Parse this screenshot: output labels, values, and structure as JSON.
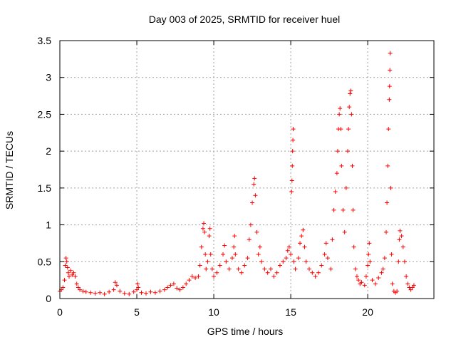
{
  "chart_data": {
    "type": "scatter",
    "title": "Day 003 of 2025, SRMTID for receiver huel",
    "xlabel": "GPS time / hours",
    "ylabel": "SRMTID / TECUs",
    "xlim": [
      0,
      24.3
    ],
    "ylim": [
      0,
      3.5
    ],
    "x_ticks": [
      0,
      5,
      10,
      15,
      20
    ],
    "x_tick_labels": [
      "0",
      "5",
      "10",
      "15",
      "20"
    ],
    "y_ticks": [
      0,
      0.5,
      1,
      1.5,
      2,
      2.5,
      3,
      3.5
    ],
    "y_tick_labels": [
      "0",
      "0.5",
      "1",
      "1.5",
      "2",
      "2.5",
      "3",
      "3.5"
    ],
    "grid": true,
    "marker": "+",
    "series": [
      {
        "name": "SRMTID",
        "color": "#ff0000",
        "points": [
          [
            0.0,
            0.1
          ],
          [
            0.1,
            0.12
          ],
          [
            0.2,
            0.15
          ],
          [
            0.3,
            0.25
          ],
          [
            0.35,
            0.45
          ],
          [
            0.4,
            0.55
          ],
          [
            0.45,
            0.5
          ],
          [
            0.5,
            0.42
          ],
          [
            0.55,
            0.35
          ],
          [
            0.6,
            0.3
          ],
          [
            0.7,
            0.38
          ],
          [
            0.8,
            0.32
          ],
          [
            0.9,
            0.35
          ],
          [
            1.0,
            0.3
          ],
          [
            1.1,
            0.2
          ],
          [
            1.2,
            0.15
          ],
          [
            1.3,
            0.12
          ],
          [
            1.5,
            0.1
          ],
          [
            1.7,
            0.09
          ],
          [
            2.0,
            0.08
          ],
          [
            2.3,
            0.07
          ],
          [
            2.6,
            0.08
          ],
          [
            2.9,
            0.06
          ],
          [
            3.2,
            0.09
          ],
          [
            3.5,
            0.12
          ],
          [
            3.6,
            0.22
          ],
          [
            3.7,
            0.18
          ],
          [
            3.9,
            0.1
          ],
          [
            4.2,
            0.07
          ],
          [
            4.5,
            0.06
          ],
          [
            4.8,
            0.09
          ],
          [
            5.0,
            0.12
          ],
          [
            5.05,
            0.2
          ],
          [
            5.1,
            0.15
          ],
          [
            5.3,
            0.08
          ],
          [
            5.6,
            0.07
          ],
          [
            5.9,
            0.09
          ],
          [
            6.2,
            0.08
          ],
          [
            6.5,
            0.1
          ],
          [
            6.8,
            0.12
          ],
          [
            7.0,
            0.15
          ],
          [
            7.2,
            0.18
          ],
          [
            7.4,
            0.2
          ],
          [
            7.6,
            0.14
          ],
          [
            7.8,
            0.12
          ],
          [
            8.0,
            0.15
          ],
          [
            8.2,
            0.2
          ],
          [
            8.4,
            0.25
          ],
          [
            8.6,
            0.3
          ],
          [
            8.8,
            0.28
          ],
          [
            9.0,
            0.3
          ],
          [
            9.1,
            0.45
          ],
          [
            9.2,
            0.7
          ],
          [
            9.3,
            0.95
          ],
          [
            9.35,
            1.02
          ],
          [
            9.4,
            0.9
          ],
          [
            9.45,
            0.6
          ],
          [
            9.5,
            0.4
          ],
          [
            9.6,
            0.5
          ],
          [
            9.7,
            0.85
          ],
          [
            9.75,
            0.95
          ],
          [
            9.8,
            0.6
          ],
          [
            9.9,
            0.4
          ],
          [
            10.0,
            0.3
          ],
          [
            10.2,
            0.35
          ],
          [
            10.4,
            0.45
          ],
          [
            10.6,
            0.6
          ],
          [
            10.7,
            0.72
          ],
          [
            10.8,
            0.5
          ],
          [
            11.0,
            0.4
          ],
          [
            11.2,
            0.55
          ],
          [
            11.3,
            0.7
          ],
          [
            11.35,
            0.85
          ],
          [
            11.4,
            0.6
          ],
          [
            11.6,
            0.4
          ],
          [
            11.8,
            0.35
          ],
          [
            12.0,
            0.45
          ],
          [
            12.2,
            0.55
          ],
          [
            12.3,
            0.8
          ],
          [
            12.4,
            1.0
          ],
          [
            12.5,
            1.3
          ],
          [
            12.6,
            1.55
          ],
          [
            12.65,
            1.63
          ],
          [
            12.7,
            1.4
          ],
          [
            12.8,
            0.9
          ],
          [
            12.9,
            0.6
          ],
          [
            13.0,
            0.7
          ],
          [
            13.1,
            0.5
          ],
          [
            13.3,
            0.4
          ],
          [
            13.5,
            0.35
          ],
          [
            13.7,
            0.4
          ],
          [
            13.9,
            0.3
          ],
          [
            14.1,
            0.35
          ],
          [
            14.3,
            0.45
          ],
          [
            14.5,
            0.5
          ],
          [
            14.7,
            0.55
          ],
          [
            14.8,
            0.65
          ],
          [
            14.9,
            0.7
          ],
          [
            15.0,
            0.6
          ],
          [
            15.05,
            1.45
          ],
          [
            15.08,
            1.6
          ],
          [
            15.1,
            1.8
          ],
          [
            15.12,
            2.0
          ],
          [
            15.14,
            2.15
          ],
          [
            15.16,
            2.3
          ],
          [
            15.2,
            0.5
          ],
          [
            15.3,
            0.4
          ],
          [
            15.5,
            0.55
          ],
          [
            15.6,
            0.75
          ],
          [
            15.7,
            0.85
          ],
          [
            15.8,
            0.93
          ],
          [
            15.9,
            0.7
          ],
          [
            16.0,
            0.5
          ],
          [
            16.2,
            0.4
          ],
          [
            16.4,
            0.35
          ],
          [
            16.6,
            0.3
          ],
          [
            16.8,
            0.35
          ],
          [
            17.0,
            0.45
          ],
          [
            17.2,
            0.6
          ],
          [
            17.3,
            0.75
          ],
          [
            17.4,
            0.55
          ],
          [
            17.6,
            0.4
          ],
          [
            17.7,
            0.8
          ],
          [
            17.8,
            1.2
          ],
          [
            17.9,
            1.45
          ],
          [
            18.0,
            1.7
          ],
          [
            18.05,
            2.0
          ],
          [
            18.1,
            2.3
          ],
          [
            18.15,
            2.5
          ],
          [
            18.2,
            2.58
          ],
          [
            18.25,
            2.3
          ],
          [
            18.3,
            1.8
          ],
          [
            18.4,
            1.2
          ],
          [
            18.5,
            0.9
          ],
          [
            18.6,
            1.5
          ],
          [
            18.7,
            2.0
          ],
          [
            18.75,
            2.3
          ],
          [
            18.8,
            2.6
          ],
          [
            18.85,
            2.78
          ],
          [
            18.9,
            2.82
          ],
          [
            18.95,
            2.5
          ],
          [
            19.0,
            1.8
          ],
          [
            19.05,
            1.2
          ],
          [
            19.1,
            0.7
          ],
          [
            19.2,
            0.4
          ],
          [
            19.3,
            0.3
          ],
          [
            19.4,
            0.25
          ],
          [
            19.5,
            0.2
          ],
          [
            19.6,
            0.22
          ],
          [
            19.8,
            0.18
          ],
          [
            19.9,
            0.3
          ],
          [
            20.0,
            0.45
          ],
          [
            20.05,
            0.6
          ],
          [
            20.1,
            0.75
          ],
          [
            20.15,
            0.5
          ],
          [
            20.3,
            0.25
          ],
          [
            20.5,
            0.2
          ],
          [
            20.7,
            0.28
          ],
          [
            20.9,
            0.35
          ],
          [
            21.0,
            0.4
          ],
          [
            21.1,
            0.55
          ],
          [
            21.2,
            0.9
          ],
          [
            21.25,
            1.3
          ],
          [
            21.3,
            1.8
          ],
          [
            21.35,
            2.3
          ],
          [
            21.4,
            2.7
          ],
          [
            21.42,
            2.88
          ],
          [
            21.44,
            3.1
          ],
          [
            21.46,
            3.33
          ],
          [
            21.5,
            1.5
          ],
          [
            21.55,
            0.6
          ],
          [
            21.6,
            0.2
          ],
          [
            21.7,
            0.1
          ],
          [
            21.8,
            0.08
          ],
          [
            21.9,
            0.1
          ],
          [
            22.0,
            0.5
          ],
          [
            22.05,
            0.8
          ],
          [
            22.1,
            0.92
          ],
          [
            22.2,
            0.85
          ],
          [
            22.3,
            0.7
          ],
          [
            22.4,
            0.5
          ],
          [
            22.5,
            0.3
          ],
          [
            22.6,
            0.2
          ],
          [
            22.7,
            0.15
          ],
          [
            22.8,
            0.12
          ],
          [
            22.9,
            0.15
          ],
          [
            23.0,
            0.18
          ]
        ]
      }
    ]
  }
}
